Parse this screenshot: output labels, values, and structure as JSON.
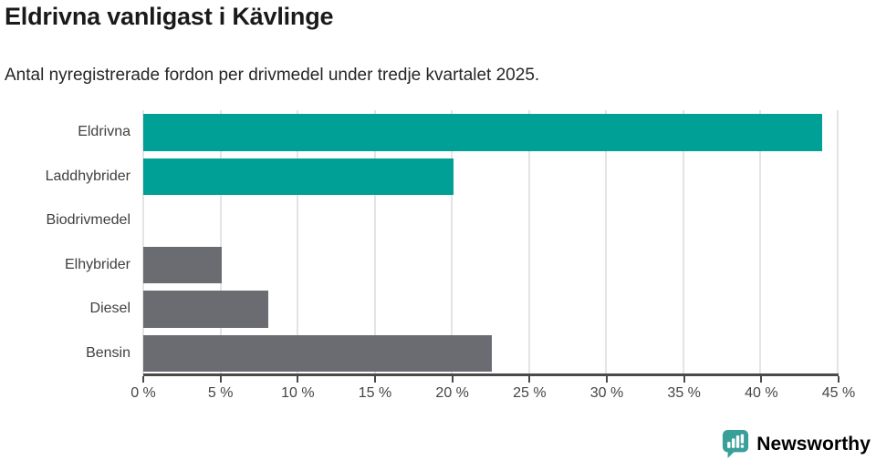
{
  "header": {
    "title": "Eldrivna vanligast i Kävlinge",
    "subtitle": "Antal nyregistrerade fordon per drivmedel under tredje kvartalet 2025."
  },
  "chart_data": {
    "type": "bar",
    "orientation": "horizontal",
    "title": "Eldrivna vanligast i Kävlinge",
    "subtitle": "Antal nyregistrerade fordon per drivmedel under tredje kvartalet 2025.",
    "categories": [
      "Eldrivna",
      "Laddhybrider",
      "Biodrivmedel",
      "Elhybrider",
      "Diesel",
      "Bensin"
    ],
    "values": [
      44,
      20.1,
      0,
      5.1,
      8.1,
      22.6
    ],
    "unit": "%",
    "xlim": [
      0,
      45
    ],
    "x_ticks": [
      0,
      5,
      10,
      15,
      20,
      25,
      30,
      35,
      40,
      45
    ],
    "x_tick_labels": [
      "0 %",
      "5 %",
      "10 %",
      "15 %",
      "20 %",
      "25 %",
      "30 %",
      "35 %",
      "40 %",
      "45 %"
    ],
    "bar_colors": [
      "#00a096",
      "#00a096",
      "#6b6b72",
      "#6b6b72",
      "#6b6b72",
      "#6b6b72"
    ],
    "grid": true,
    "legend": "none"
  },
  "colors": {
    "accent_teal": "#00a096",
    "muted_gray": "#6b6b72",
    "gridline": "#e4e4e4",
    "axis": "#4a4a4a"
  },
  "branding": {
    "logo_text": "Newsworthy",
    "logo_text_color": "#3d8f8c",
    "logo_icon_color": "#38a099",
    "logo_icon_name": "newsworthy-speech-bubble-barchart-icon"
  }
}
